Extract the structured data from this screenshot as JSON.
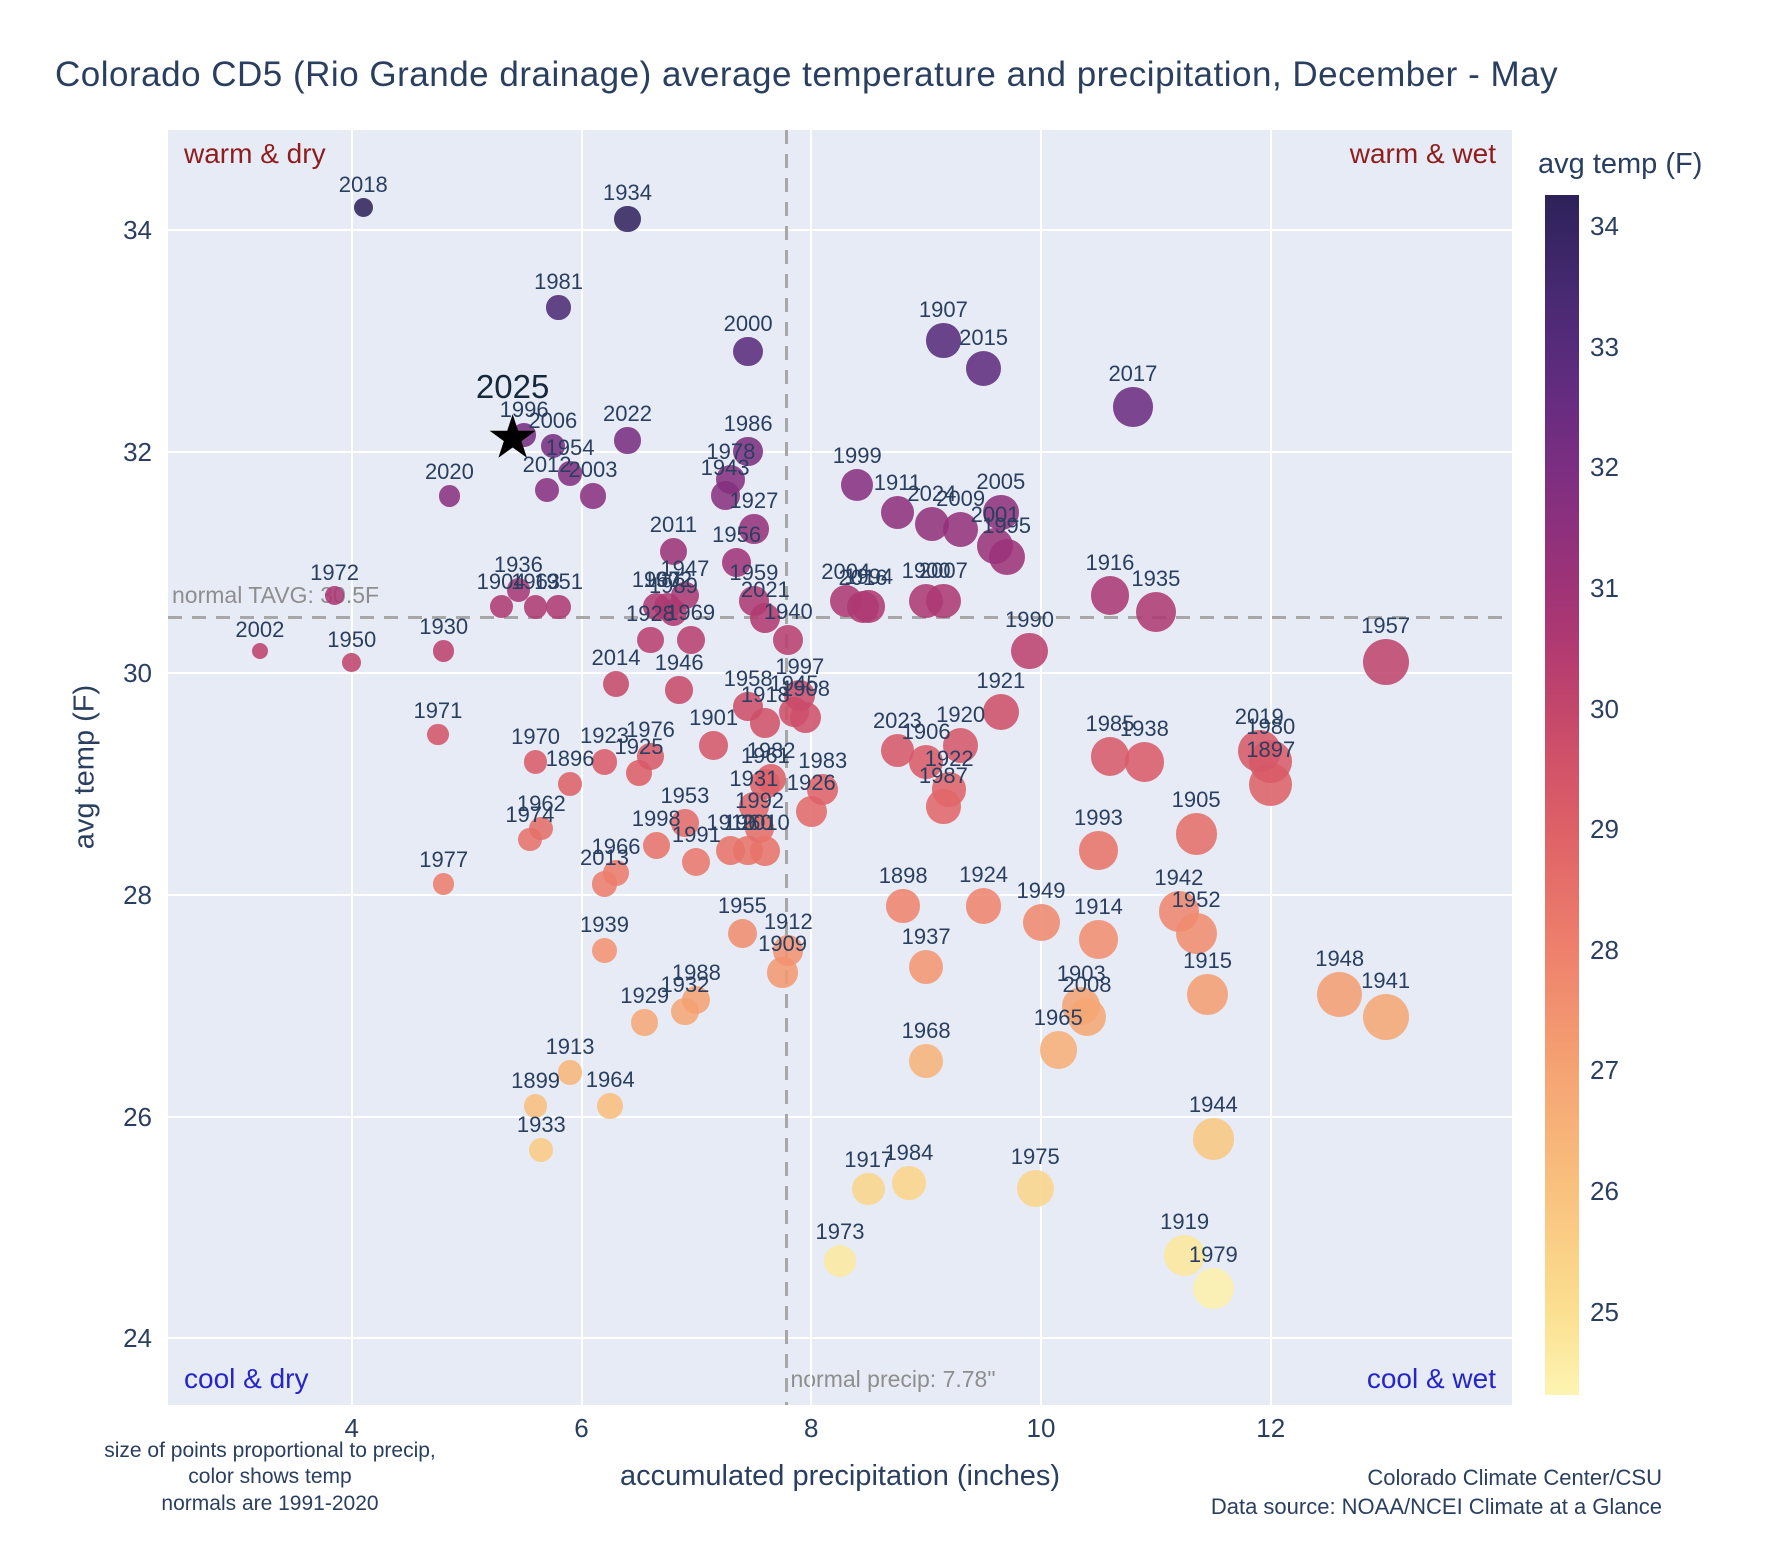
{
  "chart_data": {
    "type": "scatter",
    "title": "Colorado CD5 (Rio Grande drainage) average temperature and precipitation, December - May",
    "xlabel": "accumulated precipitation (inches)",
    "ylabel": "avg temp (F)",
    "xlim": [
      2.4,
      14.1
    ],
    "ylim": [
      23.4,
      34.9
    ],
    "xticks": [
      4,
      6,
      8,
      10,
      12
    ],
    "yticks": [
      24,
      26,
      28,
      30,
      32,
      34
    ],
    "grid": true,
    "legend_position": "colorbar-right",
    "quadrant_labels": {
      "top_left": "warm & dry",
      "top_right": "warm & wet",
      "bottom_left": "cool & dry",
      "bottom_right": "cool & wet",
      "warm_color": "#8f1d1d",
      "cool_color": "#2525c8"
    },
    "normals": {
      "tavg_value": 30.5,
      "precip_value": 7.78,
      "tavg_label": "normal TAVG: 30.5F",
      "precip_label": "normal precip: 7.78\"",
      "line_color": "#a7a7a7",
      "label_color": "#8e8e8e"
    },
    "colorbar": {
      "title": "avg temp (F)",
      "ticks": [
        25,
        26,
        27,
        28,
        29,
        30,
        31,
        32,
        33,
        34
      ],
      "domain": [
        24.3,
        34.25
      ]
    },
    "colormap": [
      [
        24.3,
        "#fdf4b2"
      ],
      [
        25.0,
        "#fbdf90"
      ],
      [
        26.0,
        "#f9c17e"
      ],
      [
        27.0,
        "#f5a373"
      ],
      [
        28.0,
        "#ee806c"
      ],
      [
        29.0,
        "#de6067"
      ],
      [
        29.5,
        "#d25368"
      ],
      [
        30.0,
        "#c3466b"
      ],
      [
        30.5,
        "#b13a71"
      ],
      [
        31.0,
        "#9f3377"
      ],
      [
        31.5,
        "#8d307d"
      ],
      [
        32.0,
        "#7b2e81"
      ],
      [
        32.5,
        "#682c80"
      ],
      [
        33.0,
        "#562b7a"
      ],
      [
        33.5,
        "#452970"
      ],
      [
        34.25,
        "#2d2159"
      ]
    ],
    "star": {
      "label": "2025",
      "precip": 5.4,
      "temp": 32.1
    },
    "points": [
      [
        1896,
        5.9,
        29.0
      ],
      [
        1897,
        12.0,
        29.0
      ],
      [
        1898,
        8.8,
        27.9
      ],
      [
        1899,
        5.6,
        26.1
      ],
      [
        1900,
        9.0,
        30.65
      ],
      [
        1901,
        7.15,
        29.35
      ],
      [
        1902,
        6.75,
        30.6
      ],
      [
        1903,
        10.35,
        27.0
      ],
      [
        1904,
        5.3,
        30.6
      ],
      [
        1905,
        11.35,
        28.55
      ],
      [
        1906,
        9.0,
        29.2
      ],
      [
        1907,
        9.15,
        33.0
      ],
      [
        1908,
        7.95,
        29.6
      ],
      [
        1909,
        7.75,
        27.3
      ],
      [
        1910,
        7.3,
        28.4
      ],
      [
        1911,
        8.75,
        31.45
      ],
      [
        1912,
        7.8,
        27.5
      ],
      [
        1913,
        5.9,
        26.4
      ],
      [
        1914,
        10.5,
        27.6
      ],
      [
        1915,
        11.45,
        27.1
      ],
      [
        1916,
        10.6,
        30.7
      ],
      [
        1917,
        8.5,
        25.35
      ],
      [
        1918,
        7.6,
        29.55
      ],
      [
        1919,
        11.25,
        24.75
      ],
      [
        1920,
        9.3,
        29.35
      ],
      [
        1921,
        9.65,
        29.65
      ],
      [
        1922,
        9.2,
        28.95
      ],
      [
        1923,
        6.2,
        29.2
      ],
      [
        1924,
        9.5,
        27.9
      ],
      [
        1925,
        6.5,
        29.1
      ],
      [
        1926,
        8.0,
        28.75
      ],
      [
        1927,
        7.5,
        31.3
      ],
      [
        1928,
        6.6,
        30.3
      ],
      [
        1929,
        6.55,
        26.85
      ],
      [
        1930,
        4.8,
        30.2
      ],
      [
        1931,
        7.5,
        28.8
      ],
      [
        1932,
        6.9,
        26.95
      ],
      [
        1933,
        5.65,
        25.7
      ],
      [
        1934,
        6.4,
        34.1
      ],
      [
        1935,
        11.0,
        30.55
      ],
      [
        1936,
        5.45,
        30.75
      ],
      [
        1937,
        9.0,
        27.35
      ],
      [
        1938,
        10.9,
        29.2
      ],
      [
        1939,
        6.2,
        27.5
      ],
      [
        1940,
        7.8,
        30.3
      ],
      [
        1941,
        13.0,
        26.9
      ],
      [
        1942,
        11.2,
        27.85
      ],
      [
        1943,
        7.25,
        31.6
      ],
      [
        1944,
        11.5,
        25.8
      ],
      [
        1945,
        7.85,
        29.65
      ],
      [
        1946,
        6.85,
        29.85
      ],
      [
        1947,
        6.9,
        30.7
      ],
      [
        1948,
        12.6,
        27.1
      ],
      [
        1949,
        10.0,
        27.75
      ],
      [
        1950,
        4.0,
        30.1
      ],
      [
        1951,
        5.8,
        30.6
      ],
      [
        1952,
        11.35,
        27.65
      ],
      [
        1953,
        6.9,
        28.65
      ],
      [
        1954,
        5.9,
        31.8
      ],
      [
        1955,
        7.4,
        27.65
      ],
      [
        1956,
        7.35,
        31.0
      ],
      [
        1957,
        13.0,
        30.1
      ],
      [
        1958,
        7.45,
        29.7
      ],
      [
        1959,
        7.5,
        30.65
      ],
      [
        1960,
        7.45,
        28.4
      ],
      [
        1961,
        7.6,
        29.0
      ],
      [
        1962,
        5.65,
        28.6
      ],
      [
        1963,
        5.6,
        30.6
      ],
      [
        1964,
        6.25,
        26.1
      ],
      [
        1965,
        10.15,
        26.6
      ],
      [
        1966,
        6.3,
        28.2
      ],
      [
        1967,
        6.65,
        30.6
      ],
      [
        1968,
        9.0,
        26.5
      ],
      [
        1969,
        6.95,
        30.3
      ],
      [
        1970,
        5.6,
        29.2
      ],
      [
        1971,
        4.75,
        29.45
      ],
      [
        1972,
        3.85,
        30.7
      ],
      [
        1973,
        8.25,
        24.7
      ],
      [
        1974,
        5.55,
        28.5
      ],
      [
        1975,
        9.95,
        25.35
      ],
      [
        1976,
        6.6,
        29.25
      ],
      [
        1977,
        4.8,
        28.1
      ],
      [
        1978,
        7.3,
        31.75
      ],
      [
        1979,
        11.5,
        24.45
      ],
      [
        1980,
        12.0,
        29.2
      ],
      [
        1981,
        5.8,
        33.3
      ],
      [
        1982,
        7.65,
        29.05
      ],
      [
        1983,
        8.1,
        28.95
      ],
      [
        1984,
        8.85,
        25.4
      ],
      [
        1985,
        10.6,
        29.25
      ],
      [
        1986,
        7.45,
        32.0
      ],
      [
        1987,
        9.15,
        28.8
      ],
      [
        1988,
        7.0,
        27.05
      ],
      [
        1989,
        6.8,
        30.55
      ],
      [
        1990,
        9.9,
        30.2
      ],
      [
        1991,
        7.0,
        28.3
      ],
      [
        1992,
        7.55,
        28.6
      ],
      [
        1993,
        10.5,
        28.4
      ],
      [
        1994,
        8.5,
        30.6
      ],
      [
        1995,
        9.7,
        31.05
      ],
      [
        1996,
        5.5,
        32.15
      ],
      [
        1997,
        7.9,
        29.8
      ],
      [
        1998,
        6.65,
        28.45
      ],
      [
        1999,
        8.4,
        31.7
      ],
      [
        2000,
        7.45,
        32.9
      ],
      [
        2001,
        9.6,
        31.15
      ],
      [
        2002,
        3.2,
        30.2
      ],
      [
        2003,
        6.1,
        31.6
      ],
      [
        2004,
        8.3,
        30.65
      ],
      [
        2005,
        9.65,
        31.45
      ],
      [
        2006,
        5.75,
        32.05
      ],
      [
        2007,
        9.15,
        30.65
      ],
      [
        2008,
        10.4,
        26.9
      ],
      [
        2009,
        9.3,
        31.3
      ],
      [
        2010,
        7.6,
        28.4
      ],
      [
        2011,
        6.8,
        31.1
      ],
      [
        2012,
        5.7,
        31.65
      ],
      [
        2013,
        6.2,
        28.1
      ],
      [
        2014,
        6.3,
        29.9
      ],
      [
        2015,
        9.5,
        32.75
      ],
      [
        2016,
        8.45,
        30.6
      ],
      [
        2017,
        10.8,
        32.4
      ],
      [
        2018,
        4.1,
        34.2
      ],
      [
        2019,
        11.9,
        29.3
      ],
      [
        2020,
        4.85,
        31.6
      ],
      [
        2021,
        7.6,
        30.5
      ],
      [
        2022,
        6.4,
        32.1
      ],
      [
        2023,
        8.75,
        29.3
      ],
      [
        2024,
        9.05,
        31.35
      ]
    ]
  },
  "footnotes": {
    "left_line1": "size of points proportional to precip,",
    "left_line2": "color shows temp",
    "left_line3": "normals are 1991-2020",
    "right_line1": "Colorado Climate Center/CSU",
    "right_line2": "Data source: NOAA/NCEI Climate at a Glance"
  }
}
